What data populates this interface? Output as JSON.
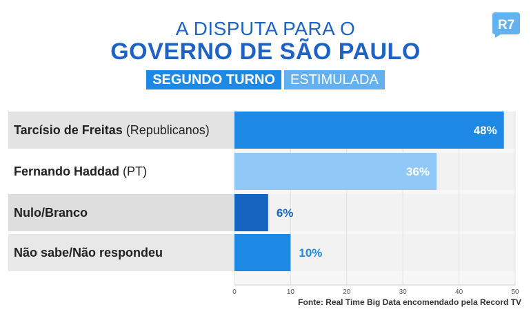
{
  "header": {
    "title_line1": "A DISPUTA PARA O",
    "title_line2": "GOVERNO DE SÃO PAULO",
    "pill_primary": "SEGUNDO TURNO",
    "pill_secondary": "ESTIMULADA"
  },
  "logo": {
    "text": "R7",
    "icon": "r7-logo-icon",
    "color": "#64b1f2"
  },
  "source": "Fonte: Real Time Big Data encomendado pela Record TV",
  "chart_data": {
    "type": "bar",
    "orientation": "horizontal",
    "categories": [
      {
        "name": "Tarcísio de Freitas",
        "party": "(Republicanos)"
      },
      {
        "name": "Fernando Haddad",
        "party": "(PT)"
      },
      {
        "name": "Nulo/Branco",
        "party": ""
      },
      {
        "name": "Não sabe/Não respondeu",
        "party": ""
      }
    ],
    "values": [
      48,
      36,
      6,
      10
    ],
    "value_labels": [
      "48%",
      "36%",
      "6%",
      "10%"
    ],
    "bar_colors": [
      "#1e88e5",
      "#90c8f8",
      "#1565c0",
      "#1e88e5"
    ],
    "label_bg_colors": [
      "#e3e3e3",
      "#ffffff",
      "#dedede",
      "#e8e8e8"
    ],
    "value_label_inside": [
      true,
      true,
      false,
      false
    ],
    "value_label_colors": [
      "#ffffff",
      "#ffffff",
      "#1565c0",
      "#1e88e5"
    ],
    "xlim": [
      0,
      50
    ],
    "xticks": [
      0,
      10,
      20,
      30,
      40,
      50
    ],
    "grid": true
  }
}
